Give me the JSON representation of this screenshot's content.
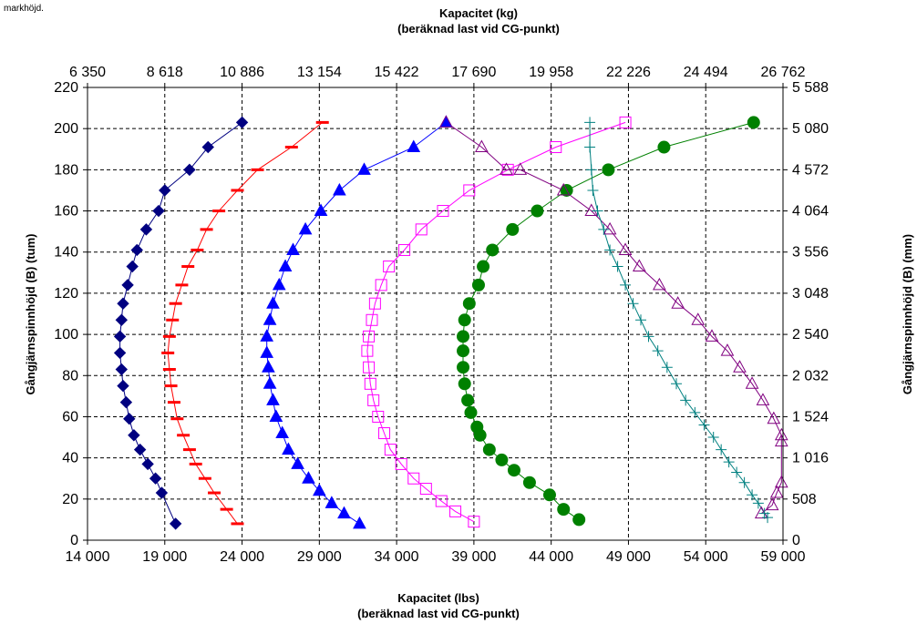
{
  "corner_note": "markhöjd.",
  "chart_data": {
    "type": "scatter",
    "top_title": [
      "Kapacitet (kg)",
      "(beräknad last vid CG-punkt)"
    ],
    "bottom_title": [
      "Kapacitet (lbs)",
      "(beräknad last vid CG-punkt)"
    ],
    "ylabel_left": "Gångjärnspinnhöjd (B) (tum)",
    "ylabel_right": "Gångjärnspinnhöjd (B) (mm)",
    "x_ticks_bottom": [
      "14 000",
      "19 000",
      "24 000",
      "29 000",
      "34 000",
      "39 000",
      "44 000",
      "49 000",
      "54 000",
      "59 000"
    ],
    "x_ticks_top": [
      "6 350",
      "8 618",
      "10 886",
      "13 154",
      "15 422",
      "17 690",
      "19 958",
      "22 226",
      "24 494",
      "26 762"
    ],
    "y_ticks_left": [
      "0",
      "20",
      "40",
      "60",
      "80",
      "100",
      "120",
      "140",
      "160",
      "180",
      "200",
      "220"
    ],
    "y_ticks_right": [
      "0",
      "508",
      "1 016",
      "1 524",
      "2 032",
      "2 540",
      "3 048",
      "3 556",
      "4 064",
      "4 572",
      "5 080",
      "5 588"
    ],
    "xlim": [
      14000,
      59000
    ],
    "ylim": [
      0,
      220
    ],
    "grid": true,
    "series": [
      {
        "marker": "diamond",
        "color": "#000080",
        "fill": true,
        "x": [
          24000,
          21800,
          20600,
          19000,
          18600,
          17800,
          17200,
          16900,
          16600,
          16300,
          16200,
          16100,
          16100,
          16200,
          16300,
          16500,
          16700,
          17000,
          17400,
          17900,
          18400,
          18800,
          19700
        ],
        "y": [
          203,
          191,
          180,
          170,
          160,
          151,
          141,
          133,
          124,
          115,
          107,
          99,
          91,
          83,
          75,
          67,
          59,
          51,
          44,
          37,
          30,
          23,
          8
        ]
      },
      {
        "marker": "dash",
        "color": "#ff0000",
        "fill": true,
        "x": [
          29200,
          27200,
          25000,
          23700,
          22500,
          21700,
          21100,
          20500,
          20100,
          19700,
          19500,
          19300,
          19200,
          19300,
          19400,
          19600,
          19800,
          20200,
          20600,
          21000,
          21600,
          22200,
          23000,
          23700
        ],
        "y": [
          203,
          191,
          180,
          170,
          160,
          151,
          141,
          133,
          124,
          115,
          107,
          99,
          91,
          83,
          75,
          67,
          59,
          51,
          44,
          37,
          30,
          23,
          15,
          8
        ]
      },
      {
        "marker": "triangle",
        "color": "#0000ff",
        "fill": true,
        "x": [
          37200,
          35100,
          31900,
          30300,
          29100,
          28100,
          27300,
          26800,
          26400,
          26000,
          25800,
          25600,
          25600,
          25700,
          25800,
          26000,
          26200,
          26600,
          27000,
          27600,
          28300,
          29000,
          29800,
          30600,
          31600
        ],
        "y": [
          203,
          191,
          180,
          170,
          160,
          151,
          141,
          133,
          124,
          115,
          107,
          99,
          91,
          84,
          76,
          68,
          60,
          52,
          44,
          37,
          30,
          24,
          18,
          13,
          8
        ]
      },
      {
        "marker": "square",
        "color": "#ff00ff",
        "fill": false,
        "x": [
          48800,
          44300,
          41200,
          38700,
          37000,
          35600,
          34500,
          33500,
          33000,
          32600,
          32400,
          32200,
          32100,
          32200,
          32300,
          32500,
          32800,
          33200,
          33600,
          34300,
          35100,
          35900,
          36900,
          37800,
          39000
        ],
        "y": [
          203,
          191,
          180,
          170,
          160,
          151,
          141,
          133,
          124,
          115,
          107,
          99,
          92,
          84,
          76,
          68,
          60,
          52,
          44,
          37,
          30,
          25,
          19,
          14,
          9
        ]
      },
      {
        "marker": "circle",
        "color": "#008000",
        "fill": true,
        "x": [
          57100,
          51300,
          47700,
          45000,
          43100,
          41500,
          40200,
          39600,
          39300,
          38700,
          38400,
          38300,
          38300,
          38300,
          38400,
          38600,
          38800,
          39200,
          39400,
          40000,
          40800,
          41600,
          42600,
          43900,
          44800,
          45800
        ],
        "y": [
          203,
          191,
          180,
          170,
          160,
          151,
          141,
          133,
          124,
          115,
          107,
          99,
          92,
          84,
          76,
          68,
          62,
          55,
          51,
          44,
          39,
          34,
          28,
          22,
          15,
          10
        ]
      },
      {
        "marker": "triangle",
        "color": "#800080",
        "fill": false,
        "x": [
          37200,
          39500,
          41100,
          42000,
          44800,
          46600,
          47800,
          48800,
          49700,
          51000,
          52200,
          53500,
          54400,
          55400,
          56200,
          57000,
          57700,
          58400,
          58900,
          58900,
          58900,
          58600,
          58300,
          57600
        ],
        "y": [
          203,
          191,
          180,
          180,
          170,
          160,
          151,
          141,
          133,
          124,
          115,
          107,
          99,
          92,
          84,
          76,
          68,
          59,
          51,
          48,
          28,
          23,
          17,
          13
        ]
      },
      {
        "marker": "plus",
        "color": "#008080",
        "fill": false,
        "x": [
          46500,
          46500,
          46600,
          46700,
          47000,
          47400,
          47800,
          48300,
          48800,
          49300,
          49800,
          50300,
          50900,
          51500,
          52100,
          52700,
          53300,
          53900,
          54500,
          55000,
          55500,
          56000,
          56500,
          57000,
          57400,
          57800,
          58000
        ],
        "y": [
          203,
          191,
          180,
          170,
          160,
          151,
          141,
          133,
          124,
          115,
          107,
          99,
          92,
          84,
          76,
          68,
          62,
          56,
          50,
          44,
          38,
          33,
          28,
          22,
          18,
          13,
          11
        ]
      }
    ]
  }
}
